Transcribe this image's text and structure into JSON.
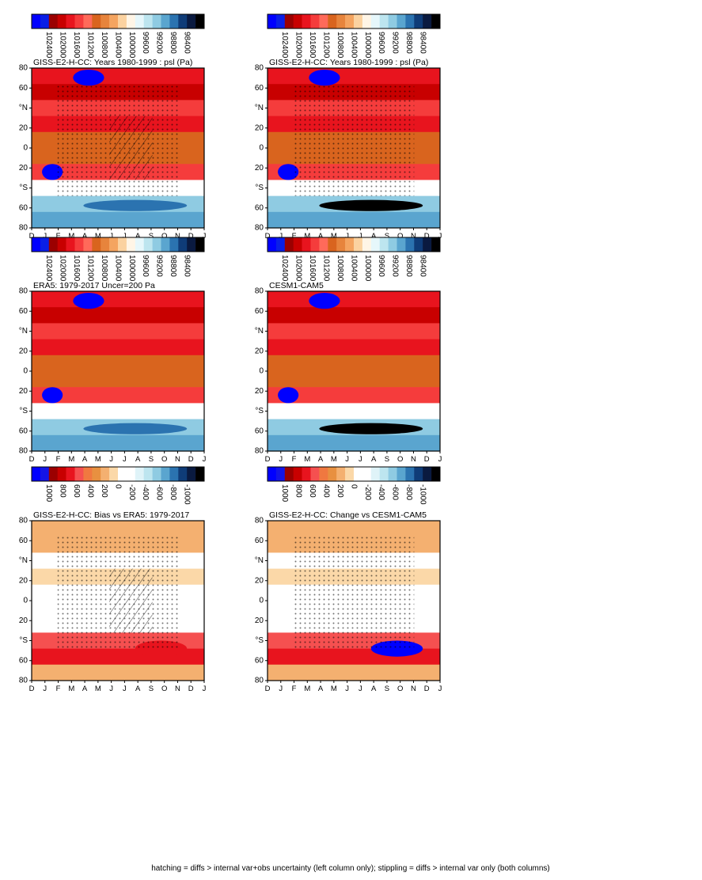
{
  "footer_note": "hatching = diffs > internal var+obs uncertainty (left column only); stippling = diffs > internal var only (both columns)",
  "chart_data": [
    {
      "type": "heatmap",
      "title": "GISS-E2-H-CC: Years 1980-1999 : psl (Pa)",
      "x_ticks": [
        "D",
        "J",
        "F",
        "M",
        "A",
        "M",
        "J",
        "J",
        "A",
        "S",
        "O",
        "N",
        "D",
        "J"
      ],
      "y_ticks": [
        "80",
        "60",
        "°N",
        "20",
        "0",
        "20",
        "°S",
        "60",
        "80"
      ],
      "field": "psl",
      "hatching": true,
      "stippling": true,
      "colorbar": {
        "labels": [
          "102400",
          "102000",
          "101600",
          "101200",
          "100800",
          "100400",
          "100000",
          "99600",
          "99200",
          "98800",
          "98400"
        ],
        "colors": [
          "#0000ff",
          "#0a1fe6",
          "#9b0000",
          "#c80000",
          "#e8141e",
          "#f53c3c",
          "#ff6a5a",
          "#d9641e",
          "#e7843c",
          "#f4a460",
          "#fbd2a0",
          "#fff5e6",
          "#e6f7fb",
          "#bde5ef",
          "#8fcbe2",
          "#5aa5cf",
          "#2b73b0",
          "#0f3c78",
          "#0a1a40",
          "#000000"
        ]
      }
    },
    {
      "type": "heatmap",
      "title": "GISS-E2-H-CC: Years 1980-1999 : psl (Pa)",
      "x_ticks": [
        "D",
        "J",
        "F",
        "M",
        "A",
        "M",
        "J",
        "J",
        "A",
        "S",
        "O",
        "N",
        "D",
        "J"
      ],
      "y_ticks": [
        "80",
        "60",
        "°N",
        "20",
        "0",
        "20",
        "°S",
        "60",
        "80"
      ],
      "field": "psl",
      "hatching": false,
      "stippling": true,
      "colorbar": {
        "labels": [
          "102400",
          "102000",
          "101600",
          "101200",
          "100800",
          "100400",
          "100000",
          "99600",
          "99200",
          "98800",
          "98400"
        ],
        "colors": [
          "#0000ff",
          "#0a1fe6",
          "#9b0000",
          "#c80000",
          "#e8141e",
          "#f53c3c",
          "#ff6a5a",
          "#d9641e",
          "#e7843c",
          "#f4a460",
          "#fbd2a0",
          "#fff5e6",
          "#e6f7fb",
          "#bde5ef",
          "#8fcbe2",
          "#5aa5cf",
          "#2b73b0",
          "#0f3c78",
          "#0a1a40",
          "#000000"
        ]
      }
    },
    {
      "type": "heatmap",
      "title": "ERA5: 1979-2017 Uncer=200 Pa",
      "x_ticks": [
        "D",
        "J",
        "F",
        "M",
        "A",
        "M",
        "J",
        "J",
        "A",
        "S",
        "O",
        "N",
        "D",
        "J"
      ],
      "y_ticks": [
        "80",
        "60",
        "°N",
        "20",
        "0",
        "20",
        "°S",
        "60",
        "80"
      ],
      "field": "psl",
      "hatching": false,
      "stippling": false,
      "colorbar": {
        "labels": [
          "102400",
          "102000",
          "101600",
          "101200",
          "100800",
          "100400",
          "100000",
          "99600",
          "99200",
          "98800",
          "98400"
        ],
        "colors": [
          "#0000ff",
          "#0a1fe6",
          "#9b0000",
          "#c80000",
          "#e8141e",
          "#f53c3c",
          "#ff6a5a",
          "#d9641e",
          "#e7843c",
          "#f4a460",
          "#fbd2a0",
          "#fff5e6",
          "#e6f7fb",
          "#bde5ef",
          "#8fcbe2",
          "#5aa5cf",
          "#2b73b0",
          "#0f3c78",
          "#0a1a40",
          "#000000"
        ]
      }
    },
    {
      "type": "heatmap",
      "title": "CESM1-CAM5",
      "x_ticks": [
        "D",
        "J",
        "F",
        "M",
        "A",
        "M",
        "J",
        "J",
        "A",
        "S",
        "O",
        "N",
        "D",
        "J"
      ],
      "y_ticks": [
        "80",
        "60",
        "°N",
        "20",
        "0",
        "20",
        "°S",
        "60",
        "80"
      ],
      "field": "psl",
      "hatching": false,
      "stippling": false,
      "colorbar": {
        "labels": [
          "102400",
          "102000",
          "101600",
          "101200",
          "100800",
          "100400",
          "100000",
          "99600",
          "99200",
          "98800",
          "98400"
        ],
        "colors": [
          "#0000ff",
          "#0a1fe6",
          "#9b0000",
          "#c80000",
          "#e8141e",
          "#f53c3c",
          "#ff6a5a",
          "#d9641e",
          "#e7843c",
          "#f4a460",
          "#fbd2a0",
          "#fff5e6",
          "#e6f7fb",
          "#bde5ef",
          "#8fcbe2",
          "#5aa5cf",
          "#2b73b0",
          "#0f3c78",
          "#0a1a40",
          "#000000"
        ]
      }
    },
    {
      "type": "heatmap",
      "title": "GISS-E2-H-CC: Bias vs ERA5: 1979-2017",
      "x_ticks": [
        "D",
        "J",
        "F",
        "M",
        "A",
        "M",
        "J",
        "J",
        "A",
        "S",
        "O",
        "N",
        "D",
        "J"
      ],
      "y_ticks": [
        "80",
        "60",
        "°N",
        "20",
        "0",
        "20",
        "°S",
        "60",
        "80"
      ],
      "field": "diff",
      "hatching": true,
      "stippling": true,
      "colorbar": {
        "labels": [
          "1000",
          "800",
          "600",
          "400",
          "200",
          "0",
          "-200",
          "-400",
          "-600",
          "-800",
          "-1000"
        ],
        "colors": [
          "#0000ff",
          "#1414e6",
          "#9b0000",
          "#c80000",
          "#e8141e",
          "#f55050",
          "#f07840",
          "#e89040",
          "#f4b070",
          "#fbd8a8",
          "#ffffff",
          "#ffffff",
          "#dff3f8",
          "#bde5ef",
          "#8fcbe2",
          "#5aa5cf",
          "#2b73b0",
          "#0f3c78",
          "#0a1a40",
          "#000000"
        ]
      }
    },
    {
      "type": "heatmap",
      "title": "GISS-E2-H-CC: Change vs CESM1-CAM5",
      "x_ticks": [
        "D",
        "J",
        "F",
        "M",
        "A",
        "M",
        "J",
        "J",
        "A",
        "S",
        "O",
        "N",
        "D",
        "J"
      ],
      "y_ticks": [
        "80",
        "60",
        "°N",
        "20",
        "0",
        "20",
        "°S",
        "60",
        "80"
      ],
      "field": "change",
      "hatching": false,
      "stippling": true,
      "colorbar": {
        "labels": [
          "1000",
          "800",
          "600",
          "400",
          "200",
          "0",
          "-200",
          "-400",
          "-600",
          "-800",
          "-1000"
        ],
        "colors": [
          "#0000ff",
          "#1414e6",
          "#9b0000",
          "#c80000",
          "#e8141e",
          "#f55050",
          "#f07840",
          "#e89040",
          "#f4b070",
          "#fbd8a8",
          "#ffffff",
          "#ffffff",
          "#dff3f8",
          "#bde5ef",
          "#8fcbe2",
          "#5aa5cf",
          "#2b73b0",
          "#0f3c78",
          "#0a1a40",
          "#000000"
        ]
      }
    }
  ]
}
